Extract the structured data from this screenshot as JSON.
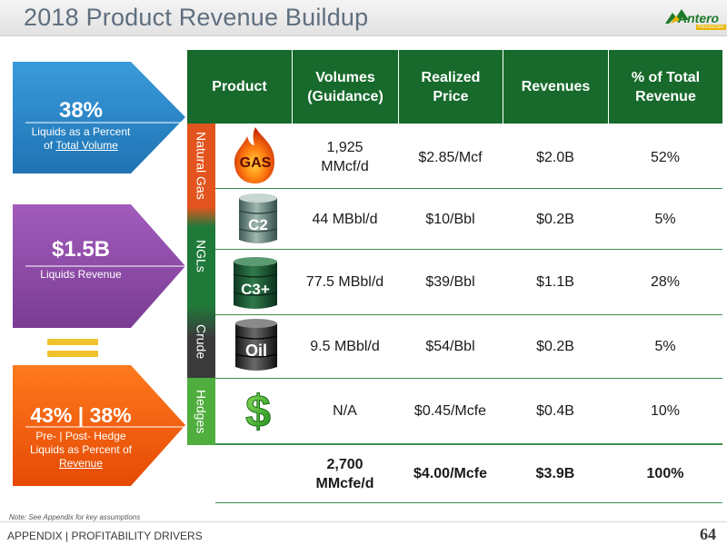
{
  "title": "2018 Product Revenue Buildup",
  "logo": {
    "name": "Antero",
    "sub": "Resources"
  },
  "callouts": [
    {
      "big": "38%",
      "line1": "Liquids as a Percent",
      "line2_prefix": "of ",
      "line2_link": "Total Volume",
      "color": "#2b87c9"
    },
    {
      "big": "$1.5B",
      "line1": "Liquids Revenue",
      "color": "#8e4aa6"
    },
    {
      "big": "43% | 38%",
      "line1": "Pre- | Post- Hedge",
      "line2": "Liquids as Percent of",
      "line3": "Revenue",
      "color": "#f05a0a"
    }
  ],
  "table": {
    "headers": [
      "Product",
      "Volumes (Guidance)",
      "Realized Price",
      "Revenues",
      "% of Total Revenue"
    ],
    "header_lines": {
      "volumes": [
        "Volumes",
        "(Guidance)"
      ],
      "price": [
        "Realized",
        "Price"
      ],
      "pct": [
        "% of Total",
        "Revenue"
      ]
    },
    "groups": [
      {
        "label": "Natural Gas",
        "color": "#e3541e"
      },
      {
        "label": "NGLs",
        "color": "#1f7a39"
      },
      {
        "label": "Crude",
        "color": "#3a3a3a"
      },
      {
        "label": "Hedges",
        "color": "#4fae3e"
      }
    ],
    "rows": [
      {
        "icon": "gas-flame-icon",
        "icon_label": "GAS",
        "volume_lines": [
          "1,925",
          "MMcf/d"
        ],
        "price": "$2.85/Mcf",
        "revenue": "$2.0B",
        "pct": "52%"
      },
      {
        "icon": "barrel-icon",
        "icon_label": "C2",
        "volume": "44 MBbl/d",
        "price": "$10/Bbl",
        "revenue": "$0.2B",
        "pct": "5%"
      },
      {
        "icon": "barrel-icon",
        "icon_label": "C3+",
        "volume": "77.5 MBbl/d",
        "price": "$39/Bbl",
        "revenue": "$1.1B",
        "pct": "28%"
      },
      {
        "icon": "barrel-icon",
        "icon_label": "Oil",
        "volume": "9.5 MBbl/d",
        "price": "$54/Bbl",
        "revenue": "$0.2B",
        "pct": "5%"
      },
      {
        "icon": "dollar-sign-icon",
        "volume": "N/A",
        "price": "$0.45/Mcfe",
        "revenue": "$0.4B",
        "pct": "10%"
      }
    ],
    "total": {
      "volume_lines": [
        "2,700",
        "MMcfe/d"
      ],
      "price": "$4.00/Mcfe",
      "revenue": "$3.9B",
      "pct": "100%"
    }
  },
  "note": "Note: See Appendix for key assumptions",
  "footer": "APPENDIX | PROFITABILITY DRIVERS",
  "page_number": "64"
}
